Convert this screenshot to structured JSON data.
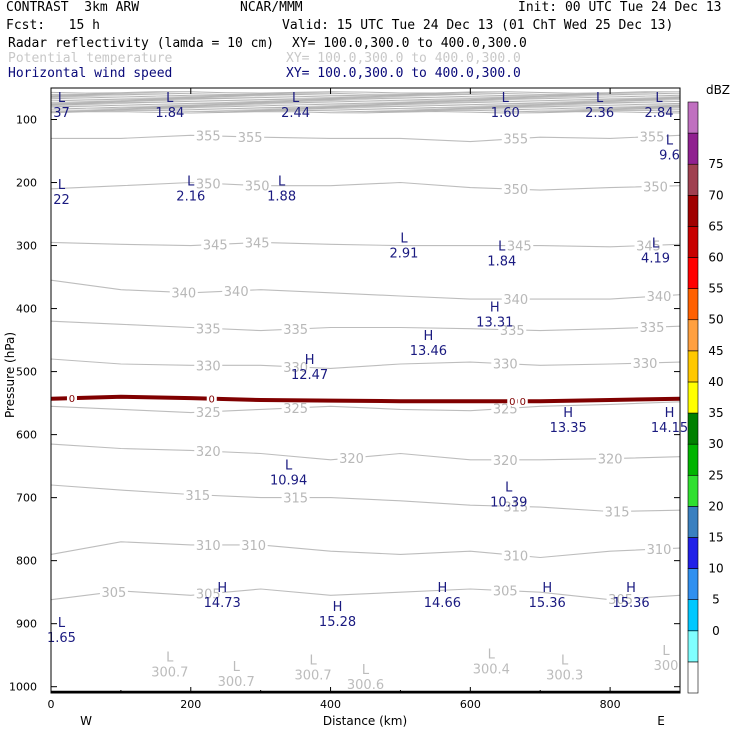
{
  "header": {
    "model": "CONTRAST  3km ARW",
    "org": "NCAR/MMM",
    "init": "Init: 00 UTC Tue 24 Dec 13",
    "fcst": "Fcst:   15 h",
    "valid": "Valid: 15 UTC Tue 24 Dec 13 (01 ChT Wed 25 Dec 13)",
    "fields": [
      {
        "name": "Radar reflectivity (lamda = 10 cm)",
        "xy": "XY= 100.0,300.0 to 400.0,300.0",
        "style": "black"
      },
      {
        "name": "Potential temperature",
        "xy": "XY= 100.0,300.0 to 400.0,300.0",
        "style": "lgray"
      },
      {
        "name": "Horizontal wind speed",
        "xy": "XY= 100.0,300.0 to 400.0,300.0",
        "style": "navy"
      }
    ]
  },
  "chart_data": {
    "type": "cross-section",
    "xlabel": "Distance (km)",
    "ylabel": "Pressure (hPa)",
    "xlim": [
      0,
      900
    ],
    "ylim": [
      1010,
      50
    ],
    "x_ticks": [
      0,
      200,
      400,
      600,
      800
    ],
    "y_ticks": [
      100,
      200,
      300,
      400,
      500,
      600,
      700,
      800,
      900,
      1000
    ],
    "direction_left": "W",
    "direction_right": "E",
    "ground_pressure": 1008,
    "theta_contours": [
      {
        "value": 305,
        "points": [
          [
            0,
            862
          ],
          [
            100,
            848
          ],
          [
            200,
            855
          ],
          [
            300,
            845
          ],
          [
            400,
            855
          ],
          [
            500,
            850
          ],
          [
            600,
            845
          ],
          [
            700,
            850
          ],
          [
            800,
            862
          ],
          [
            900,
            855
          ]
        ],
        "labels": [
          [
            90,
            "305"
          ],
          [
            225,
            "305"
          ],
          [
            650,
            "305"
          ],
          [
            815,
            "305"
          ]
        ]
      },
      {
        "value": 310,
        "points": [
          [
            0,
            790
          ],
          [
            100,
            770
          ],
          [
            200,
            775
          ],
          [
            300,
            775
          ],
          [
            400,
            785
          ],
          [
            500,
            790
          ],
          [
            600,
            785
          ],
          [
            700,
            795
          ],
          [
            800,
            785
          ],
          [
            900,
            780
          ]
        ],
        "labels": [
          [
            225,
            "310"
          ],
          [
            290,
            "310"
          ],
          [
            665,
            "310"
          ],
          [
            870,
            "310"
          ]
        ]
      },
      {
        "value": 315,
        "points": [
          [
            0,
            680
          ],
          [
            100,
            688
          ],
          [
            200,
            695
          ],
          [
            300,
            700
          ],
          [
            400,
            700
          ],
          [
            500,
            705
          ],
          [
            600,
            712
          ],
          [
            700,
            715
          ],
          [
            800,
            722
          ],
          [
            900,
            720
          ]
        ],
        "labels": [
          [
            210,
            "315"
          ],
          [
            350,
            "315"
          ],
          [
            665,
            "315"
          ],
          [
            810,
            "315"
          ]
        ]
      },
      {
        "value": 320,
        "points": [
          [
            0,
            615
          ],
          [
            100,
            622
          ],
          [
            200,
            625
          ],
          [
            300,
            630
          ],
          [
            400,
            640
          ],
          [
            500,
            630
          ],
          [
            600,
            640
          ],
          [
            700,
            640
          ],
          [
            800,
            638
          ],
          [
            900,
            635
          ]
        ],
        "labels": [
          [
            225,
            "320"
          ],
          [
            430,
            "320"
          ],
          [
            650,
            "320"
          ],
          [
            800,
            "320"
          ]
        ]
      },
      {
        "value": 325,
        "points": [
          [
            0,
            555
          ],
          [
            100,
            560
          ],
          [
            200,
            565
          ],
          [
            300,
            560
          ],
          [
            400,
            555
          ],
          [
            500,
            560
          ],
          [
            600,
            562
          ],
          [
            700,
            555
          ],
          [
            800,
            552
          ],
          [
            900,
            548
          ]
        ],
        "labels": [
          [
            225,
            "325"
          ],
          [
            350,
            "325"
          ],
          [
            650,
            "325"
          ]
        ]
      },
      {
        "value": 330,
        "points": [
          [
            0,
            480
          ],
          [
            100,
            488
          ],
          [
            200,
            490
          ],
          [
            300,
            490
          ],
          [
            400,
            495
          ],
          [
            500,
            488
          ],
          [
            600,
            485
          ],
          [
            700,
            490
          ],
          [
            800,
            488
          ],
          [
            900,
            485
          ]
        ],
        "labels": [
          [
            225,
            "330"
          ],
          [
            350,
            "330"
          ],
          [
            650,
            "330"
          ],
          [
            850,
            "330"
          ]
        ]
      },
      {
        "value": 335,
        "points": [
          [
            0,
            420
          ],
          [
            100,
            425
          ],
          [
            200,
            430
          ],
          [
            300,
            435
          ],
          [
            400,
            430
          ],
          [
            500,
            430
          ],
          [
            600,
            432
          ],
          [
            700,
            435
          ],
          [
            800,
            432
          ],
          [
            900,
            428
          ]
        ],
        "labels": [
          [
            225,
            "335"
          ],
          [
            350,
            "335"
          ],
          [
            660,
            "335"
          ],
          [
            860,
            "335"
          ]
        ]
      },
      {
        "value": 340,
        "points": [
          [
            0,
            355
          ],
          [
            100,
            370
          ],
          [
            200,
            375
          ],
          [
            300,
            370
          ],
          [
            400,
            375
          ],
          [
            500,
            380
          ],
          [
            600,
            385
          ],
          [
            700,
            385
          ],
          [
            800,
            385
          ],
          [
            900,
            378
          ]
        ],
        "labels": [
          [
            190,
            "340"
          ],
          [
            265,
            "340"
          ],
          [
            665,
            "340"
          ],
          [
            870,
            "340"
          ]
        ]
      },
      {
        "value": 345,
        "points": [
          [
            0,
            295
          ],
          [
            100,
            298
          ],
          [
            200,
            300
          ],
          [
            300,
            295
          ],
          [
            400,
            298
          ],
          [
            500,
            300
          ],
          [
            600,
            300
          ],
          [
            700,
            300
          ],
          [
            800,
            302
          ],
          [
            900,
            298
          ]
        ],
        "labels": [
          [
            235,
            "345"
          ],
          [
            295,
            "345"
          ],
          [
            670,
            "345"
          ],
          [
            855,
            "345"
          ]
        ]
      },
      {
        "value": 350,
        "points": [
          [
            0,
            210
          ],
          [
            100,
            205
          ],
          [
            200,
            200
          ],
          [
            300,
            205
          ],
          [
            400,
            205
          ],
          [
            500,
            200
          ],
          [
            600,
            208
          ],
          [
            700,
            212
          ],
          [
            800,
            208
          ],
          [
            900,
            205
          ]
        ],
        "labels": [
          [
            225,
            "350"
          ],
          [
            295,
            "350"
          ],
          [
            665,
            "350"
          ],
          [
            865,
            "350"
          ]
        ]
      },
      {
        "value": 355,
        "points": [
          [
            0,
            130
          ],
          [
            100,
            130
          ],
          [
            200,
            125
          ],
          [
            300,
            128
          ],
          [
            400,
            130
          ],
          [
            500,
            130
          ],
          [
            600,
            135
          ],
          [
            700,
            128
          ],
          [
            800,
            130
          ],
          [
            900,
            125
          ]
        ],
        "labels": [
          [
            225,
            "355"
          ],
          [
            285,
            "355"
          ],
          [
            665,
            "355"
          ],
          [
            860,
            "355"
          ]
        ]
      }
    ],
    "reflectivity_zero_line": [
      [
        0,
        543
      ],
      [
        100,
        540
      ],
      [
        200,
        542
      ],
      [
        300,
        545
      ],
      [
        400,
        546
      ],
      [
        500,
        547
      ],
      [
        600,
        547
      ],
      [
        700,
        547
      ],
      [
        800,
        545
      ],
      [
        900,
        543
      ]
    ],
    "reflectivity_labels": [
      [
        30,
        "0"
      ],
      [
        230,
        "0"
      ],
      [
        660,
        "0"
      ],
      [
        675,
        "0"
      ]
    ],
    "pressure_minima_labels": [
      [
        170,
        960,
        "L",
        "300.7"
      ],
      [
        265,
        975,
        "L",
        "300.7"
      ],
      [
        375,
        965,
        "L",
        "300.7"
      ],
      [
        450,
        980,
        "L",
        "300.6"
      ],
      [
        630,
        955,
        "L",
        "300.4"
      ],
      [
        735,
        965,
        "L",
        "300.3"
      ],
      [
        880,
        950,
        "L",
        "300"
      ]
    ],
    "wind_speed_labels": [
      [
        15,
        72,
        "L",
        "37"
      ],
      [
        170,
        72,
        "L",
        "1.84"
      ],
      [
        350,
        72,
        "L",
        "2.44"
      ],
      [
        650,
        72,
        "L",
        "1.60"
      ],
      [
        785,
        72,
        "L",
        "2.36"
      ],
      [
        870,
        72,
        "L",
        "2.84"
      ],
      [
        885,
        140,
        "L",
        "9.6"
      ],
      [
        15,
        210,
        "L",
        "22"
      ],
      [
        200,
        205,
        "L",
        "2.16"
      ],
      [
        330,
        205,
        "L",
        "1.88"
      ],
      [
        505,
        295,
        "L",
        "2.91"
      ],
      [
        645,
        308,
        "L",
        "1.84"
      ],
      [
        865,
        303,
        "L",
        "4.19"
      ],
      [
        635,
        405,
        "H",
        "13.31"
      ],
      [
        540,
        450,
        "H",
        "13.46"
      ],
      [
        370,
        488,
        "H",
        "12.47"
      ],
      [
        740,
        572,
        "H",
        "13.35"
      ],
      [
        885,
        572,
        "H",
        "14.15"
      ],
      [
        340,
        655,
        "L",
        "10.94"
      ],
      [
        655,
        690,
        "L",
        "10.39"
      ],
      [
        245,
        850,
        "H",
        "14.73"
      ],
      [
        410,
        880,
        "H",
        "15.28"
      ],
      [
        560,
        850,
        "H",
        "14.66"
      ],
      [
        710,
        850,
        "H",
        "15.36"
      ],
      [
        830,
        850,
        "H",
        "15.36"
      ],
      [
        15,
        905,
        "L",
        "1.65"
      ]
    ],
    "colorbar": {
      "title": "dBZ",
      "levels": [
        "0",
        "5",
        "10",
        "15",
        "20",
        "25",
        "30",
        "35",
        "40",
        "45",
        "50",
        "55",
        "60",
        "65",
        "70",
        "75"
      ],
      "colors": [
        "#ffffff",
        "#80ffff",
        "#00c8ff",
        "#3090f0",
        "#2020e8",
        "#3a80c0",
        "#30e030",
        "#00b400",
        "#008000",
        "#ffff00",
        "#ffc800",
        "#ffa040",
        "#ff6000",
        "#ff0000",
        "#c80000",
        "#a00000",
        "#a04050",
        "#902090",
        "#c070c0"
      ]
    }
  }
}
